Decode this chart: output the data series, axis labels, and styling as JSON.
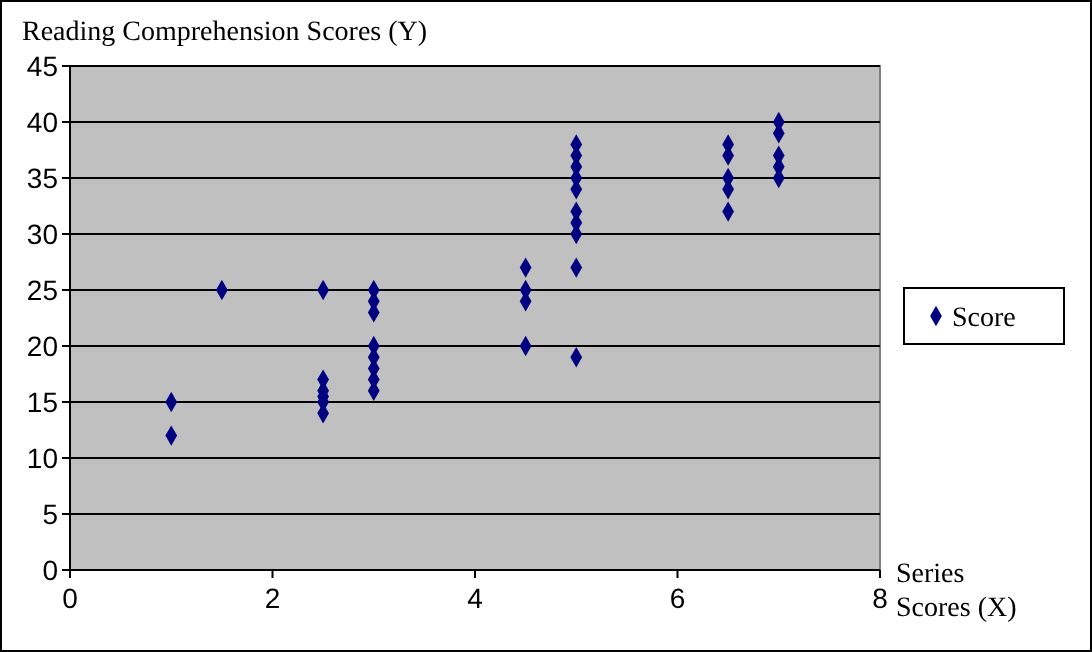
{
  "chart_data": {
    "type": "scatter",
    "ylabel": "Reading Comprehension Scores (Y)",
    "xlabel": "Series Scores (X)",
    "xlim": [
      0,
      8
    ],
    "xticks": [
      0,
      2,
      4,
      6,
      8
    ],
    "ylim": [
      0,
      45
    ],
    "yticks": [
      0,
      5,
      10,
      15,
      20,
      25,
      30,
      35,
      40,
      45
    ],
    "grid": "y",
    "legend": "right",
    "marker": "diamond",
    "series": [
      {
        "name": "Score",
        "color": "#000080",
        "x": [
          1,
          1,
          1.5,
          2.5,
          2.5,
          2.5,
          2.5,
          2.5,
          2.5,
          3,
          3,
          3,
          3,
          3,
          3,
          3,
          3,
          4.5,
          4.5,
          4.5,
          4.5,
          5,
          5,
          5,
          5,
          5,
          5,
          5,
          5,
          5,
          5,
          6.5,
          6.5,
          6.5,
          6.5,
          6.5,
          7,
          7,
          7,
          7,
          7
        ],
        "values": [
          15,
          12,
          25,
          25,
          17,
          16,
          15.5,
          15,
          14,
          25,
          24,
          23,
          20,
          19,
          18,
          17,
          16,
          27,
          25,
          24,
          20,
          38,
          37,
          36,
          35,
          34,
          32,
          31,
          30,
          27,
          19,
          38,
          37,
          35,
          34,
          32,
          40,
          39,
          37,
          36,
          35
        ]
      }
    ]
  }
}
